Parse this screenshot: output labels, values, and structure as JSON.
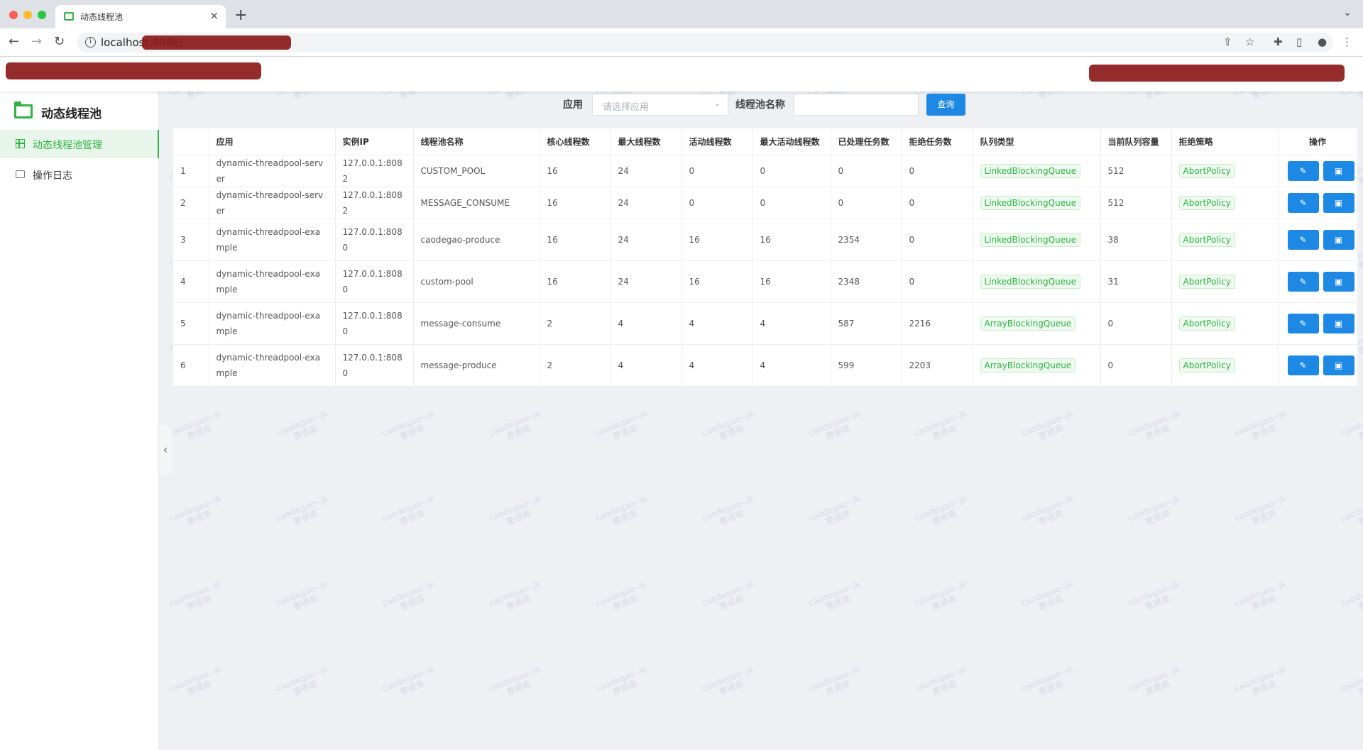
{
  "browser": {
    "tab_title": "动态线程池",
    "tab_close": "×",
    "new_tab": "+",
    "url": "localhost:8086/"
  },
  "sidebar": {
    "logo_text": "动态线程池",
    "items": [
      {
        "label": "动态线程池管理",
        "icon": "grid-icon",
        "active": true
      },
      {
        "label": "操作日志",
        "icon": "comment-icon",
        "active": false
      }
    ]
  },
  "search": {
    "app_label": "应用",
    "app_placeholder": "请选择应用",
    "pool_label": "线程池名称",
    "pool_value": "",
    "query_button": "查询"
  },
  "watermark": {
    "line1": "caodegao--jk",
    "line2": "曹德高"
  },
  "table": {
    "columns": [
      "",
      "应用",
      "实例IP",
      "线程池名称",
      "核心线程数",
      "最大线程数",
      "活动线程数",
      "最大活动线程数",
      "已处理任务数",
      "拒绝任务数",
      "队列类型",
      "当前队列容量",
      "拒绝策略",
      "操作"
    ],
    "rows": [
      [
        "1",
        "dynamic-threadpool-server",
        "127.0.0.1:8082",
        "CUSTOM_POOL",
        "16",
        "24",
        "0",
        "0",
        "0",
        "0",
        "LinkedBlockingQueue",
        "512",
        "AbortPolicy"
      ],
      [
        "2",
        "dynamic-threadpool-server",
        "127.0.0.1:8082",
        "MESSAGE_CONSUME",
        "16",
        "24",
        "0",
        "0",
        "0",
        "0",
        "LinkedBlockingQueue",
        "512",
        "AbortPolicy"
      ],
      [
        "3",
        "dynamic-threadpool-example",
        "127.0.0.1:8080",
        "caodegao-produce",
        "16",
        "24",
        "16",
        "16",
        "2354",
        "0",
        "LinkedBlockingQueue",
        "38",
        "AbortPolicy"
      ],
      [
        "4",
        "dynamic-threadpool-example",
        "127.0.0.1:8080",
        "custom-pool",
        "16",
        "24",
        "16",
        "16",
        "2348",
        "0",
        "LinkedBlockingQueue",
        "31",
        "AbortPolicy"
      ],
      [
        "5",
        "dynamic-threadpool-example",
        "127.0.0.1:8080",
        "message-consume",
        "2",
        "4",
        "4",
        "4",
        "587",
        "2216",
        "ArrayBlockingQueue",
        "0",
        "AbortPolicy"
      ],
      [
        "6",
        "dynamic-threadpool-example",
        "127.0.0.1:8080",
        "message-produce",
        "2",
        "4",
        "4",
        "4",
        "599",
        "2203",
        "ArrayBlockingQueue",
        "0",
        "AbortPolicy"
      ]
    ],
    "row_actions": [
      {
        "name": "edit",
        "icon": "edit-icon"
      },
      {
        "name": "detail",
        "icon": "image-icon"
      }
    ]
  },
  "colors": {
    "accent": "#2fb344",
    "primary_button": "#1e88e5",
    "main_bg": "#eef0f4"
  }
}
